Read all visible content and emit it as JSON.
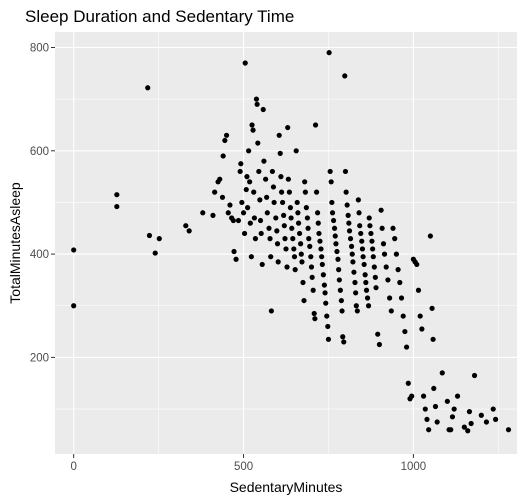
{
  "chart_data": {
    "type": "scatter",
    "title": "Sleep Duration and Sedentary Time",
    "xlabel": "SedentaryMinutes",
    "ylabel": "TotalMinutesAsleep",
    "xlim": [
      -55,
      1305
    ],
    "ylim": [
      13,
      830
    ],
    "x_ticks": [
      0,
      500,
      1000
    ],
    "y_ticks": [
      200,
      400,
      600,
      800
    ],
    "grid": true,
    "panel_color": "#EBEBEB",
    "point_color": "#000000",
    "points": [
      [
        0,
        408
      ],
      [
        0,
        300
      ],
      [
        127,
        515
      ],
      [
        127,
        492
      ],
      [
        218,
        722
      ],
      [
        223,
        436
      ],
      [
        240,
        402
      ],
      [
        252,
        430
      ],
      [
        330,
        455
      ],
      [
        340,
        445
      ],
      [
        380,
        480
      ],
      [
        410,
        475
      ],
      [
        415,
        520
      ],
      [
        425,
        540
      ],
      [
        430,
        545
      ],
      [
        438,
        510
      ],
      [
        440,
        590
      ],
      [
        445,
        620
      ],
      [
        450,
        630
      ],
      [
        455,
        480
      ],
      [
        460,
        495
      ],
      [
        465,
        470
      ],
      [
        470,
        465
      ],
      [
        472,
        405
      ],
      [
        478,
        390
      ],
      [
        485,
        465
      ],
      [
        490,
        560
      ],
      [
        492,
        575
      ],
      [
        495,
        500
      ],
      [
        500,
        480
      ],
      [
        503,
        440
      ],
      [
        505,
        770
      ],
      [
        508,
        525
      ],
      [
        510,
        550
      ],
      [
        512,
        490
      ],
      [
        515,
        600
      ],
      [
        518,
        540
      ],
      [
        520,
        460
      ],
      [
        523,
        395
      ],
      [
        525,
        650
      ],
      [
        528,
        640
      ],
      [
        530,
        520
      ],
      [
        532,
        470
      ],
      [
        535,
        430
      ],
      [
        538,
        700
      ],
      [
        540,
        690
      ],
      [
        542,
        615
      ],
      [
        545,
        560
      ],
      [
        548,
        505
      ],
      [
        550,
        465
      ],
      [
        552,
        440
      ],
      [
        555,
        380
      ],
      [
        558,
        680
      ],
      [
        560,
        580
      ],
      [
        565,
        545
      ],
      [
        568,
        510
      ],
      [
        570,
        480
      ],
      [
        575,
        450
      ],
      [
        578,
        430
      ],
      [
        580,
        395
      ],
      [
        582,
        290
      ],
      [
        585,
        560
      ],
      [
        588,
        530
      ],
      [
        590,
        500
      ],
      [
        595,
        470
      ],
      [
        598,
        445
      ],
      [
        600,
        420
      ],
      [
        602,
        385
      ],
      [
        605,
        630
      ],
      [
        608,
        595
      ],
      [
        610,
        550
      ],
      [
        612,
        520
      ],
      [
        615,
        500
      ],
      [
        618,
        475
      ],
      [
        620,
        455
      ],
      [
        622,
        430
      ],
      [
        625,
        410
      ],
      [
        628,
        375
      ],
      [
        630,
        645
      ],
      [
        632,
        545
      ],
      [
        635,
        520
      ],
      [
        638,
        490
      ],
      [
        640,
        470
      ],
      [
        642,
        450
      ],
      [
        645,
        430
      ],
      [
        648,
        410
      ],
      [
        650,
        395
      ],
      [
        652,
        370
      ],
      [
        655,
        600
      ],
      [
        658,
        500
      ],
      [
        660,
        480
      ],
      [
        662,
        460
      ],
      [
        665,
        440
      ],
      [
        668,
        420
      ],
      [
        670,
        400
      ],
      [
        672,
        385
      ],
      [
        675,
        345
      ],
      [
        678,
        310
      ],
      [
        680,
        540
      ],
      [
        682,
        520
      ],
      [
        685,
        490
      ],
      [
        688,
        470
      ],
      [
        690,
        450
      ],
      [
        692,
        430
      ],
      [
        695,
        415
      ],
      [
        698,
        395
      ],
      [
        700,
        375
      ],
      [
        702,
        355
      ],
      [
        705,
        330
      ],
      [
        708,
        285
      ],
      [
        710,
        275
      ],
      [
        712,
        650
      ],
      [
        715,
        520
      ],
      [
        718,
        480
      ],
      [
        720,
        460
      ],
      [
        722,
        440
      ],
      [
        725,
        425
      ],
      [
        728,
        410
      ],
      [
        730,
        395
      ],
      [
        732,
        380
      ],
      [
        735,
        360
      ],
      [
        738,
        340
      ],
      [
        740,
        325
      ],
      [
        742,
        305
      ],
      [
        745,
        280
      ],
      [
        748,
        260
      ],
      [
        750,
        235
      ],
      [
        752,
        790
      ],
      [
        755,
        560
      ],
      [
        758,
        540
      ],
      [
        760,
        500
      ],
      [
        762,
        480
      ],
      [
        765,
        465
      ],
      [
        768,
        450
      ],
      [
        770,
        435
      ],
      [
        772,
        420
      ],
      [
        775,
        405
      ],
      [
        778,
        390
      ],
      [
        780,
        370
      ],
      [
        782,
        350
      ],
      [
        785,
        330
      ],
      [
        788,
        310
      ],
      [
        790,
        290
      ],
      [
        792,
        240
      ],
      [
        795,
        230
      ],
      [
        798,
        745
      ],
      [
        800,
        560
      ],
      [
        802,
        520
      ],
      [
        805,
        495
      ],
      [
        808,
        475
      ],
      [
        810,
        460
      ],
      [
        812,
        445
      ],
      [
        815,
        430
      ],
      [
        818,
        415
      ],
      [
        820,
        400
      ],
      [
        822,
        385
      ],
      [
        825,
        365
      ],
      [
        828,
        345
      ],
      [
        830,
        325
      ],
      [
        832,
        300
      ],
      [
        835,
        290
      ],
      [
        838,
        505
      ],
      [
        840,
        480
      ],
      [
        842,
        455
      ],
      [
        845,
        440
      ],
      [
        848,
        425
      ],
      [
        850,
        410
      ],
      [
        852,
        395
      ],
      [
        855,
        380
      ],
      [
        858,
        360
      ],
      [
        860,
        345
      ],
      [
        862,
        330
      ],
      [
        865,
        315
      ],
      [
        868,
        300
      ],
      [
        870,
        470
      ],
      [
        872,
        455
      ],
      [
        875,
        440
      ],
      [
        878,
        425
      ],
      [
        880,
        410
      ],
      [
        882,
        395
      ],
      [
        885,
        375
      ],
      [
        888,
        355
      ],
      [
        890,
        335
      ],
      [
        895,
        245
      ],
      [
        900,
        225
      ],
      [
        905,
        485
      ],
      [
        908,
        450
      ],
      [
        912,
        420
      ],
      [
        915,
        400
      ],
      [
        920,
        375
      ],
      [
        925,
        350
      ],
      [
        930,
        315
      ],
      [
        935,
        290
      ],
      [
        940,
        450
      ],
      [
        945,
        430
      ],
      [
        950,
        400
      ],
      [
        955,
        370
      ],
      [
        960,
        345
      ],
      [
        965,
        315
      ],
      [
        970,
        280
      ],
      [
        975,
        250
      ],
      [
        980,
        220
      ],
      [
        985,
        150
      ],
      [
        990,
        120
      ],
      [
        995,
        125
      ],
      [
        1000,
        390
      ],
      [
        1005,
        385
      ],
      [
        1010,
        380
      ],
      [
        1015,
        330
      ],
      [
        1020,
        280
      ],
      [
        1025,
        255
      ],
      [
        1030,
        125
      ],
      [
        1035,
        100
      ],
      [
        1040,
        80
      ],
      [
        1045,
        60
      ],
      [
        1050,
        435
      ],
      [
        1055,
        295
      ],
      [
        1058,
        235
      ],
      [
        1060,
        140
      ],
      [
        1065,
        105
      ],
      [
        1070,
        75
      ],
      [
        1085,
        170
      ],
      [
        1100,
        115
      ],
      [
        1105,
        60
      ],
      [
        1110,
        60
      ],
      [
        1115,
        85
      ],
      [
        1120,
        100
      ],
      [
        1130,
        125
      ],
      [
        1150,
        65
      ],
      [
        1160,
        58
      ],
      [
        1165,
        95
      ],
      [
        1170,
        72
      ],
      [
        1180,
        165
      ],
      [
        1200,
        88
      ],
      [
        1215,
        75
      ],
      [
        1235,
        100
      ],
      [
        1242,
        80
      ],
      [
        1280,
        60
      ]
    ]
  }
}
